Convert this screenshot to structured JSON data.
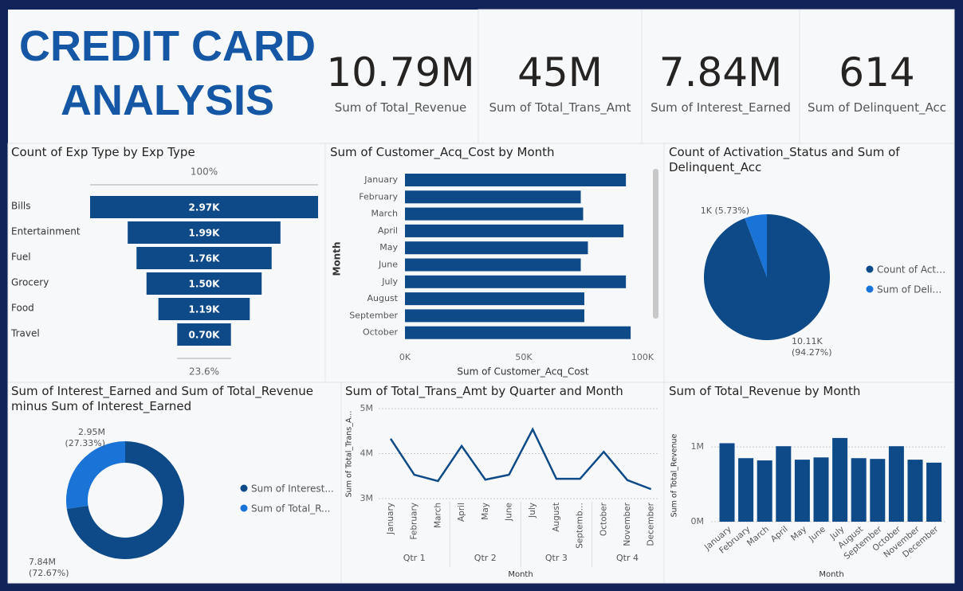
{
  "title": "CREDIT CARD ANALYSIS",
  "kpis": [
    {
      "value": "10.79M",
      "label": "Sum of Total_Revenue"
    },
    {
      "value": "45M",
      "label": "Sum of Total_Trans_Amt"
    },
    {
      "value": "7.84M",
      "label": "Sum of Interest_Earned"
    },
    {
      "value": "614",
      "label": "Sum of Delinquent_Acc"
    }
  ],
  "chart_data": [
    {
      "type": "funnel",
      "title": "Count of Exp Type by Exp Type",
      "categories": [
        "Bills",
        "Entertainment",
        "Fuel",
        "Grocery",
        "Food",
        "Travel"
      ],
      "values": [
        2970,
        1990,
        1760,
        1500,
        1190,
        700
      ],
      "value_labels": [
        "2.97K",
        "1.99K",
        "1.76K",
        "1.50K",
        "1.19K",
        "0.70K"
      ],
      "top_label": "100%",
      "bottom_label": "23.6%",
      "color": "#0d4a87"
    },
    {
      "type": "bar",
      "horizontal": true,
      "title": "Sum of Customer_Acq_Cost by Month",
      "categories": [
        "January",
        "February",
        "March",
        "April",
        "May",
        "June",
        "July",
        "August",
        "September",
        "October"
      ],
      "values": [
        93000,
        74000,
        75000,
        92000,
        77000,
        74000,
        93000,
        75500,
        75500,
        95000
      ],
      "xlim": [
        0,
        100000
      ],
      "xticks": [
        {
          "value": 0,
          "label": "0K"
        },
        {
          "value": 50000,
          "label": "50K"
        },
        {
          "value": 100000,
          "label": "100K"
        }
      ],
      "xlabel": "Sum of Customer_Acq_Cost",
      "ylabel": "Month",
      "color": "#0d4a87"
    },
    {
      "type": "pie",
      "title": "Count of Activation_Status and Sum of Delinquent_Acc",
      "labels": [
        "Count of Act…",
        "Sum of Deli…"
      ],
      "values": [
        10110,
        614
      ],
      "value_labels": [
        "10.11K (94.27%)",
        "1K (5.73%)"
      ],
      "colors": [
        "#0d4a87",
        "#1a73d6"
      ]
    },
    {
      "type": "donut",
      "title": "Sum of Interest_Earned and Sum of Total_Revenue minus Sum of Interest_Earned",
      "labels": [
        "Sum of Interest...",
        "Sum of Total_R..."
      ],
      "values": [
        7840000,
        2950000
      ],
      "value_labels": [
        "7.84M (72.67%)",
        "2.95M (27.33%)"
      ],
      "colors": [
        "#0d4a87",
        "#1a73d6"
      ]
    },
    {
      "type": "line",
      "title": "Sum of Total_Trans_Amt by Quarter and Month",
      "categories": [
        "January",
        "February",
        "March",
        "April",
        "May",
        "June",
        "July",
        "August",
        "Septemb…",
        "October",
        "November",
        "December"
      ],
      "groups": [
        "Qtr 1",
        "Qtr 2",
        "Qtr 3",
        "Qtr 4"
      ],
      "values": [
        4330000,
        3530000,
        3390000,
        4170000,
        3420000,
        3530000,
        4540000,
        3440000,
        3440000,
        4040000,
        3410000,
        3210000
      ],
      "ylim": [
        3000000,
        5000000
      ],
      "yticks": [
        {
          "value": 3000000,
          "label": "3M"
        },
        {
          "value": 4000000,
          "label": "4M"
        },
        {
          "value": 5000000,
          "label": "5M"
        }
      ],
      "xlabel": "Month",
      "ylabel": "Sum of Total_Trans_A...",
      "color": "#0d4a87",
      "grid": true
    },
    {
      "type": "bar",
      "horizontal": false,
      "title": "Sum of Total_Revenue by Month",
      "categories": [
        "January",
        "February",
        "March",
        "April",
        "May",
        "June",
        "July",
        "August",
        "September",
        "October",
        "November",
        "December"
      ],
      "values": [
        1050000,
        850000,
        820000,
        1010000,
        830000,
        860000,
        1120000,
        850000,
        840000,
        1010000,
        830000,
        790000
      ],
      "ylim": [
        0,
        1300000
      ],
      "yticks": [
        {
          "value": 0,
          "label": "0M"
        },
        {
          "value": 1000000,
          "label": "1M"
        }
      ],
      "xlabel": "Month",
      "ylabel": "Sum of Total_Revenue",
      "color": "#0d4a87",
      "grid": true
    }
  ]
}
